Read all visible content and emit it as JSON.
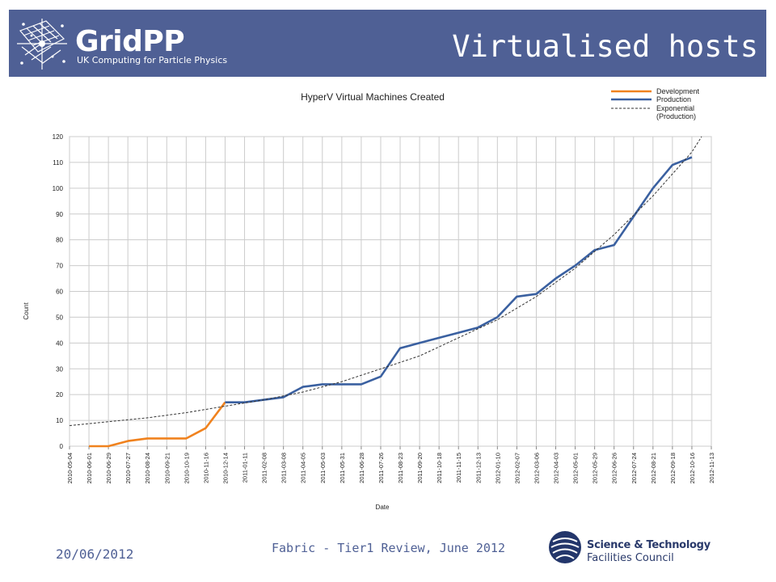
{
  "header": {
    "logo_name": "GridPP",
    "logo_tagline": "UK Computing for Particle Physics",
    "slide_title": "Virtualised hosts",
    "background": "#4f6095"
  },
  "chart_data": {
    "type": "line",
    "title": "HyperV Virtual Machines Created",
    "xlabel": "Date",
    "ylabel": "Count",
    "ylim": [
      0,
      120
    ],
    "yticks": [
      0,
      10,
      20,
      30,
      40,
      50,
      60,
      70,
      80,
      90,
      100,
      110,
      120
    ],
    "grid": true,
    "legend_position": "top-right",
    "categories": [
      "2010-05-04",
      "2010-06-01",
      "2010-06-29",
      "2010-07-27",
      "2010-08-24",
      "2010-09-21",
      "2010-10-19",
      "2010-11-16",
      "2010-12-14",
      "2011-01-11",
      "2011-02-08",
      "2011-03-08",
      "2011-04-05",
      "2011-05-03",
      "2011-05-31",
      "2011-06-28",
      "2011-07-26",
      "2011-08-23",
      "2011-09-20",
      "2011-10-18",
      "2011-11-15",
      "2011-12-13",
      "2012-01-10",
      "2012-02-07",
      "2012-03-06",
      "2012-04-03",
      "2012-05-01",
      "2012-05-29",
      "2012-06-26",
      "2012-07-24",
      "2012-08-21",
      "2012-09-18",
      "2012-10-16",
      "2012-11-13"
    ],
    "series": [
      {
        "name": "Development",
        "color": "#f0821e",
        "style": "solid",
        "points": [
          {
            "x": "2010-06-01",
            "y": 0
          },
          {
            "x": "2010-06-29",
            "y": 0
          },
          {
            "x": "2010-07-27",
            "y": 2
          },
          {
            "x": "2010-08-24",
            "y": 3
          },
          {
            "x": "2010-09-21",
            "y": 3
          },
          {
            "x": "2010-10-19",
            "y": 3
          },
          {
            "x": "2010-11-16",
            "y": 7
          },
          {
            "x": "2010-12-14",
            "y": 17
          }
        ]
      },
      {
        "name": "Production",
        "color": "#3a60a0",
        "style": "solid",
        "points": [
          {
            "x": "2010-12-14",
            "y": 17
          },
          {
            "x": "2011-01-11",
            "y": 17
          },
          {
            "x": "2011-02-08",
            "y": 18
          },
          {
            "x": "2011-03-08",
            "y": 19
          },
          {
            "x": "2011-04-05",
            "y": 23
          },
          {
            "x": "2011-05-03",
            "y": 24
          },
          {
            "x": "2011-05-31",
            "y": 24
          },
          {
            "x": "2011-06-28",
            "y": 24
          },
          {
            "x": "2011-07-26",
            "y": 27
          },
          {
            "x": "2011-08-23",
            "y": 38
          },
          {
            "x": "2011-09-20",
            "y": 40
          },
          {
            "x": "2011-10-18",
            "y": 42
          },
          {
            "x": "2011-11-15",
            "y": 44
          },
          {
            "x": "2011-12-13",
            "y": 46
          },
          {
            "x": "2012-01-10",
            "y": 50
          },
          {
            "x": "2012-02-07",
            "y": 58
          },
          {
            "x": "2012-03-06",
            "y": 59
          },
          {
            "x": "2012-04-03",
            "y": 65
          },
          {
            "x": "2012-05-01",
            "y": 70
          },
          {
            "x": "2012-05-29",
            "y": 76
          },
          {
            "x": "2012-06-26",
            "y": 78
          },
          {
            "x": "2012-07-24",
            "y": 89
          },
          {
            "x": "2012-08-21",
            "y": 100
          },
          {
            "x": "2012-09-18",
            "y": 109
          },
          {
            "x": "2012-10-16",
            "y": 112
          }
        ]
      },
      {
        "name": "Exponential (Production)",
        "color": "#333333",
        "style": "dashed",
        "points": [
          {
            "x": "2010-05-04",
            "y": 8
          },
          {
            "x": "2010-06-29",
            "y": 9.5
          },
          {
            "x": "2010-08-24",
            "y": 11
          },
          {
            "x": "2010-10-19",
            "y": 13
          },
          {
            "x": "2010-12-14",
            "y": 15.5
          },
          {
            "x": "2011-02-08",
            "y": 18
          },
          {
            "x": "2011-04-05",
            "y": 21
          },
          {
            "x": "2011-05-31",
            "y": 25
          },
          {
            "x": "2011-07-26",
            "y": 30
          },
          {
            "x": "2011-09-20",
            "y": 35
          },
          {
            "x": "2011-11-15",
            "y": 42
          },
          {
            "x": "2012-01-10",
            "y": 49
          },
          {
            "x": "2012-03-06",
            "y": 58
          },
          {
            "x": "2012-05-01",
            "y": 69
          },
          {
            "x": "2012-06-26",
            "y": 82
          },
          {
            "x": "2012-08-21",
            "y": 97
          },
          {
            "x": "2012-10-16",
            "y": 114
          },
          {
            "x": "2012-10-30",
            "y": 120
          }
        ]
      }
    ]
  },
  "footer": {
    "date": "20/06/2012",
    "caption": "Fabric - Tier1 Review, June 2012",
    "org_line1": "Science & Technology",
    "org_line2": "Facilities Council"
  }
}
